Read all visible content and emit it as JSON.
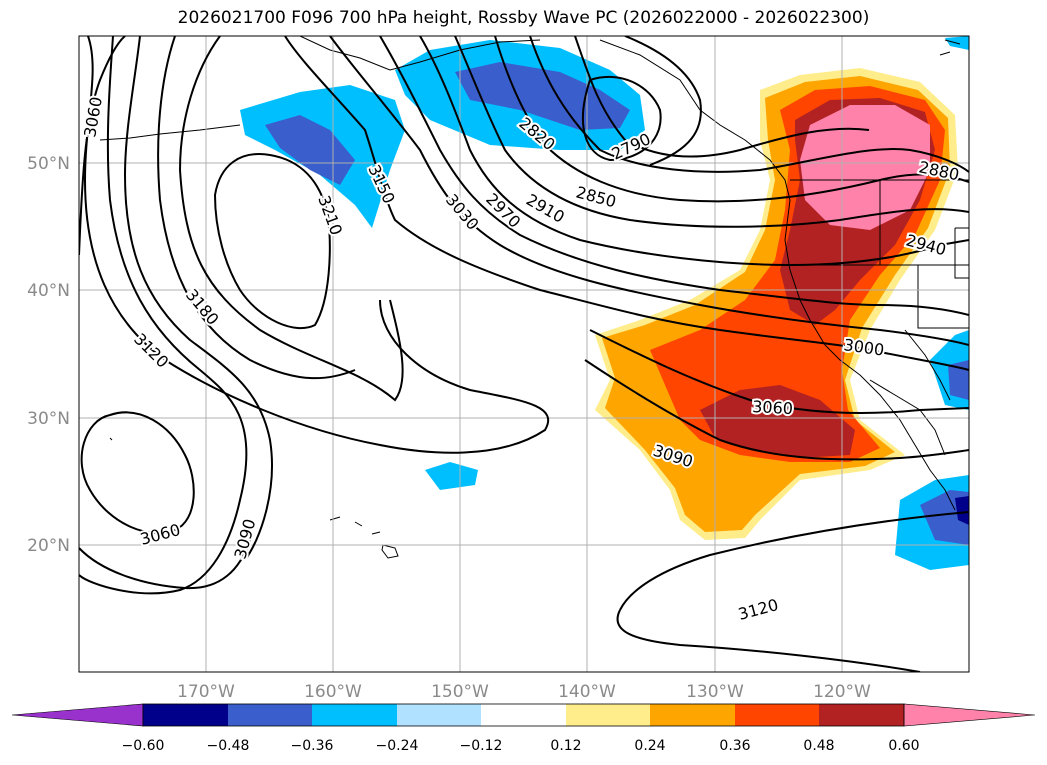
{
  "title": "2026021700 F096 700 hPa height, Rossby Wave PC (2026022000 - 2026022300)",
  "latitude_labels": [
    "50°N",
    "40°N",
    "30°N",
    "20°N"
  ],
  "longitude_labels": [
    "170°W",
    "160°W",
    "150°W",
    "140°W",
    "130°W",
    "120°W"
  ],
  "contour_labels": [
    "3060",
    "3180",
    "3120",
    "3210",
    "3150",
    "3030",
    "2970",
    "2910",
    "2850",
    "2820",
    "2790",
    "2880",
    "2940",
    "3000",
    "3060",
    "3090",
    "3060",
    "3090",
    "3120"
  ],
  "colorbar": {
    "ticks": [
      "−0.60",
      "−0.48",
      "−0.36",
      "−0.24",
      "−0.12",
      "0.12",
      "0.24",
      "0.36",
      "0.48",
      "0.60"
    ],
    "colors": [
      "#9932cc",
      "#00008b",
      "#3a5fcd",
      "#00bfff",
      "#b0e2ff",
      "#ffffff",
      "#ffec8b",
      "#ffa500",
      "#ff4500",
      "#b22222",
      "#ff82ab"
    ]
  },
  "styles": {
    "axis_label_color": "#8a8a8a",
    "grid_color": "#b0b0b0"
  }
}
